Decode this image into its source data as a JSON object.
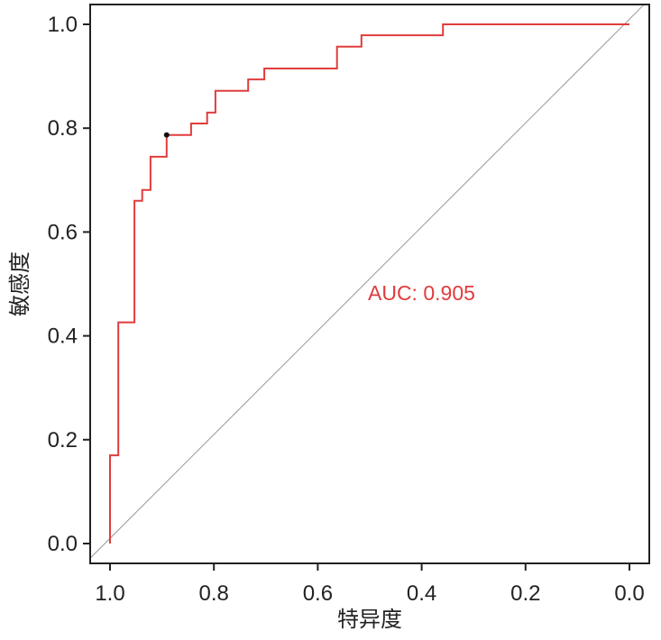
{
  "chart_data": {
    "type": "line",
    "title": "",
    "xlabel": "特异度",
    "ylabel": "敏感度",
    "xlim": [
      1.0,
      0.0
    ],
    "ylim": [
      0.0,
      1.0
    ],
    "x_ticks": [
      "1.0",
      "0.8",
      "0.6",
      "0.4",
      "0.2",
      "0.0"
    ],
    "y_ticks": [
      "0.0",
      "0.2",
      "0.4",
      "0.6",
      "0.8",
      "1.0"
    ],
    "grid": false,
    "annotation": "AUC: 0.905",
    "series": [
      {
        "name": "ROC",
        "color": "#e03c3c",
        "step": true,
        "specificity": [
          1.0,
          1.0,
          0.984,
          0.984,
          0.953,
          0.953,
          0.938,
          0.938,
          0.922,
          0.922,
          0.891,
          0.891,
          0.844,
          0.844,
          0.813,
          0.813,
          0.797,
          0.797,
          0.734,
          0.734,
          0.703,
          0.703,
          0.563,
          0.563,
          0.516,
          0.516,
          0.359,
          0.359,
          0.0
        ],
        "sensitivity": [
          0.0,
          0.17,
          0.17,
          0.426,
          0.426,
          0.66,
          0.66,
          0.681,
          0.681,
          0.745,
          0.745,
          0.787,
          0.787,
          0.809,
          0.809,
          0.83,
          0.83,
          0.872,
          0.872,
          0.894,
          0.894,
          0.915,
          0.915,
          0.957,
          0.957,
          0.979,
          0.979,
          1.0,
          1.0
        ]
      },
      {
        "name": "reference",
        "color": "#999999",
        "specificity": [
          1.05,
          -0.04
        ],
        "sensitivity": [
          -0.04,
          1.05
        ]
      }
    ],
    "best_threshold_point": {
      "specificity": 0.891,
      "sensitivity": 0.787,
      "color": "#111111"
    }
  }
}
